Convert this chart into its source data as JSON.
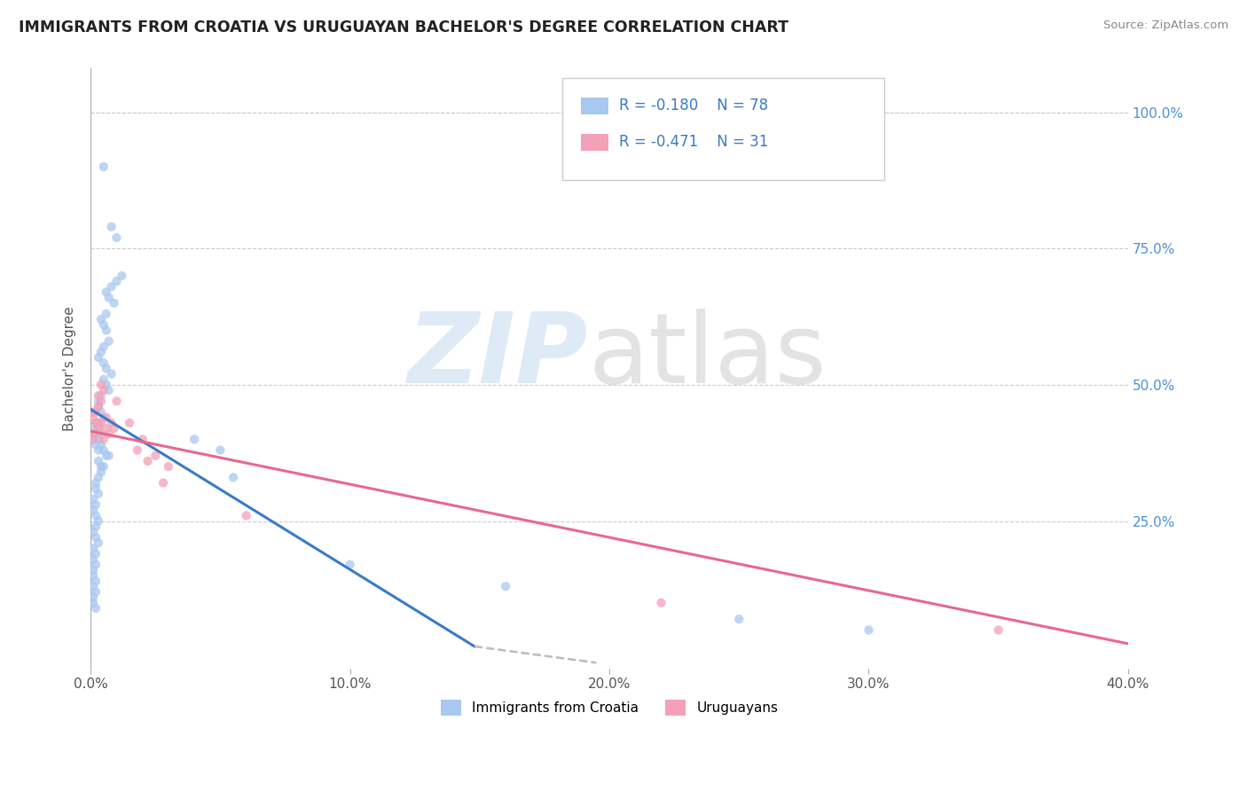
{
  "title": "IMMIGRANTS FROM CROATIA VS URUGUAYAN BACHELOR'S DEGREE CORRELATION CHART",
  "source": "Source: ZipAtlas.com",
  "ylabel": "Bachelor's Degree",
  "legend_label1": "Immigrants from Croatia",
  "legend_label2": "Uruguayans",
  "r1": -0.18,
  "n1": 78,
  "r2": -0.471,
  "n2": 31,
  "xlim": [
    0.0,
    0.4
  ],
  "ylim": [
    -0.02,
    1.08
  ],
  "xtick_labels": [
    "0.0%",
    "10.0%",
    "20.0%",
    "30.0%",
    "40.0%"
  ],
  "xtick_vals": [
    0.0,
    0.1,
    0.2,
    0.3,
    0.4
  ],
  "ytick_labels_right": [
    "25.0%",
    "50.0%",
    "75.0%",
    "100.0%"
  ],
  "ytick_vals": [
    0.25,
    0.5,
    0.75,
    1.0
  ],
  "color_blue": "#A8C8F0",
  "color_pink": "#F4A0B8",
  "color_blue_line": "#3A7AC8",
  "color_pink_line": "#E86890",
  "color_dashed": "#BBBBBB",
  "background_color": "#FFFFFF",
  "scatter_blue": {
    "x": [
      0.005,
      0.008,
      0.01,
      0.012,
      0.01,
      0.008,
      0.006,
      0.007,
      0.009,
      0.006,
      0.004,
      0.005,
      0.006,
      0.007,
      0.005,
      0.004,
      0.003,
      0.005,
      0.006,
      0.008,
      0.005,
      0.006,
      0.007,
      0.004,
      0.003,
      0.003,
      0.004,
      0.005,
      0.003,
      0.002,
      0.002,
      0.003,
      0.004,
      0.002,
      0.001,
      0.003,
      0.002,
      0.004,
      0.003,
      0.005,
      0.006,
      0.007,
      0.003,
      0.004,
      0.005,
      0.004,
      0.003,
      0.002,
      0.002,
      0.003,
      0.001,
      0.002,
      0.001,
      0.002,
      0.003,
      0.002,
      0.001,
      0.002,
      0.003,
      0.001,
      0.002,
      0.001,
      0.002,
      0.001,
      0.001,
      0.002,
      0.001,
      0.002,
      0.001,
      0.001,
      0.002,
      0.05,
      0.055,
      0.04,
      0.1,
      0.16,
      0.25,
      0.3
    ],
    "y": [
      0.9,
      0.79,
      0.77,
      0.7,
      0.69,
      0.68,
      0.67,
      0.66,
      0.65,
      0.63,
      0.62,
      0.61,
      0.6,
      0.58,
      0.57,
      0.56,
      0.55,
      0.54,
      0.53,
      0.52,
      0.51,
      0.5,
      0.49,
      0.48,
      0.47,
      0.46,
      0.45,
      0.44,
      0.43,
      0.43,
      0.42,
      0.42,
      0.41,
      0.41,
      0.4,
      0.4,
      0.39,
      0.39,
      0.38,
      0.38,
      0.37,
      0.37,
      0.36,
      0.35,
      0.35,
      0.34,
      0.33,
      0.32,
      0.31,
      0.3,
      0.29,
      0.28,
      0.27,
      0.26,
      0.25,
      0.24,
      0.23,
      0.22,
      0.21,
      0.2,
      0.19,
      0.18,
      0.17,
      0.16,
      0.15,
      0.14,
      0.13,
      0.12,
      0.11,
      0.1,
      0.09,
      0.38,
      0.33,
      0.4,
      0.17,
      0.13,
      0.07,
      0.05
    ]
  },
  "scatter_pink": {
    "x": [
      0.001,
      0.002,
      0.003,
      0.002,
      0.001,
      0.003,
      0.004,
      0.003,
      0.002,
      0.001,
      0.003,
      0.004,
      0.005,
      0.004,
      0.006,
      0.007,
      0.006,
      0.005,
      0.008,
      0.009,
      0.01,
      0.015,
      0.02,
      0.025,
      0.018,
      0.03,
      0.028,
      0.022,
      0.06,
      0.35,
      0.22
    ],
    "y": [
      0.45,
      0.43,
      0.42,
      0.41,
      0.4,
      0.48,
      0.47,
      0.46,
      0.45,
      0.44,
      0.43,
      0.5,
      0.49,
      0.43,
      0.42,
      0.41,
      0.44,
      0.4,
      0.43,
      0.42,
      0.47,
      0.43,
      0.4,
      0.37,
      0.38,
      0.35,
      0.32,
      0.36,
      0.26,
      0.05,
      0.1
    ]
  },
  "blue_line": {
    "x0": 0.0,
    "y0": 0.455,
    "x1": 0.148,
    "y1": 0.02
  },
  "blue_line_dash": {
    "x0": 0.148,
    "y0": 0.02,
    "x1": 0.195,
    "y1": -0.01
  },
  "pink_line": {
    "x0": 0.0,
    "y0": 0.415,
    "x1": 0.4,
    "y1": 0.025
  }
}
